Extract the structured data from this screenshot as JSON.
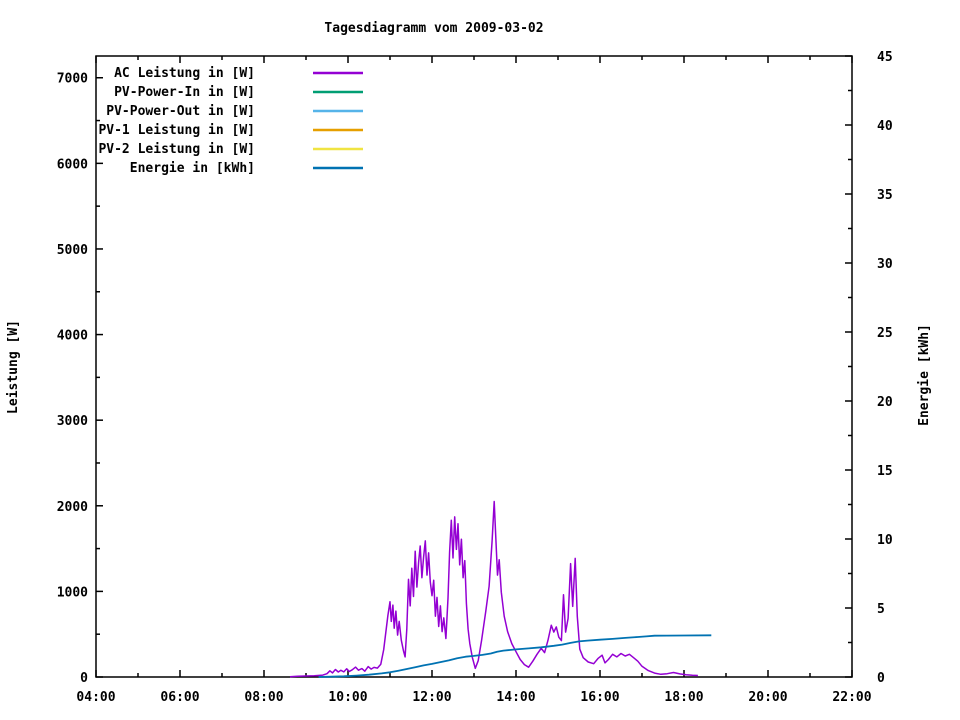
{
  "title": "Tagesdiagramm vom 2009-03-02",
  "chart_data": {
    "type": "line",
    "title": "Tagesdiagramm vom 2009-03-02",
    "grid": false,
    "legend_position": "top-left-inside",
    "x_axis": {
      "unit": "time",
      "range_hours": [
        4,
        22
      ],
      "major_tick_hours": [
        4,
        6,
        8,
        10,
        12,
        14,
        16,
        18,
        20,
        22
      ],
      "minor_tick_step_hours": 1,
      "tick_labels": [
        "04:00",
        "06:00",
        "08:00",
        "10:00",
        "12:00",
        "14:00",
        "16:00",
        "18:00",
        "20:00",
        "22:00"
      ]
    },
    "y_left": {
      "label": "Leistung [W]",
      "ticks": [
        0,
        1000,
        2000,
        3000,
        4000,
        5000,
        6000,
        7000
      ],
      "minor_tick_step": 500,
      "range": [
        0,
        7254
      ]
    },
    "y_right": {
      "label": "Energie [kWh]",
      "ticks": [
        0,
        5,
        10,
        15,
        20,
        25,
        30,
        35,
        40,
        45
      ],
      "minor_tick_step": 2.5,
      "range": [
        0,
        45
      ]
    },
    "series": [
      {
        "name": "AC Leistung in [W]",
        "color": "#9400d3",
        "axis": "left",
        "visible": true,
        "points": [
          [
            8.62,
            4
          ],
          [
            8.8,
            8
          ],
          [
            9.0,
            12
          ],
          [
            9.2,
            14
          ],
          [
            9.4,
            22
          ],
          [
            9.5,
            38
          ],
          [
            9.57,
            72
          ],
          [
            9.63,
            48
          ],
          [
            9.7,
            88
          ],
          [
            9.77,
            58
          ],
          [
            9.83,
            78
          ],
          [
            9.9,
            60
          ],
          [
            9.97,
            96
          ],
          [
            10.03,
            64
          ],
          [
            10.1,
            84
          ],
          [
            10.18,
            116
          ],
          [
            10.25,
            80
          ],
          [
            10.33,
            98
          ],
          [
            10.4,
            68
          ],
          [
            10.48,
            122
          ],
          [
            10.55,
            92
          ],
          [
            10.62,
            112
          ],
          [
            10.7,
            104
          ],
          [
            10.78,
            150
          ],
          [
            10.85,
            320
          ],
          [
            10.9,
            520
          ],
          [
            10.95,
            720
          ],
          [
            11.0,
            880
          ],
          [
            11.03,
            650
          ],
          [
            11.07,
            840
          ],
          [
            11.1,
            570
          ],
          [
            11.14,
            770
          ],
          [
            11.18,
            490
          ],
          [
            11.22,
            650
          ],
          [
            11.27,
            430
          ],
          [
            11.32,
            310
          ],
          [
            11.36,
            235
          ],
          [
            11.4,
            560
          ],
          [
            11.44,
            1140
          ],
          [
            11.48,
            830
          ],
          [
            11.52,
            1270
          ],
          [
            11.56,
            940
          ],
          [
            11.6,
            1470
          ],
          [
            11.64,
            1050
          ],
          [
            11.68,
            1340
          ],
          [
            11.72,
            1530
          ],
          [
            11.76,
            1160
          ],
          [
            11.8,
            1400
          ],
          [
            11.84,
            1590
          ],
          [
            11.88,
            1190
          ],
          [
            11.92,
            1450
          ],
          [
            11.96,
            1110
          ],
          [
            12.0,
            950
          ],
          [
            12.04,
            1130
          ],
          [
            12.08,
            710
          ],
          [
            12.12,
            930
          ],
          [
            12.16,
            590
          ],
          [
            12.2,
            830
          ],
          [
            12.24,
            530
          ],
          [
            12.28,
            690
          ],
          [
            12.33,
            450
          ],
          [
            12.38,
            920
          ],
          [
            12.42,
            1460
          ],
          [
            12.46,
            1830
          ],
          [
            12.5,
            1390
          ],
          [
            12.54,
            1870
          ],
          [
            12.58,
            1490
          ],
          [
            12.62,
            1790
          ],
          [
            12.66,
            1310
          ],
          [
            12.7,
            1610
          ],
          [
            12.74,
            1160
          ],
          [
            12.78,
            1360
          ],
          [
            12.82,
            860
          ],
          [
            12.86,
            560
          ],
          [
            12.9,
            390
          ],
          [
            12.96,
            230
          ],
          [
            13.03,
            100
          ],
          [
            13.1,
            190
          ],
          [
            13.18,
            430
          ],
          [
            13.28,
            770
          ],
          [
            13.36,
            1060
          ],
          [
            13.43,
            1590
          ],
          [
            13.48,
            2050
          ],
          [
            13.52,
            1630
          ],
          [
            13.56,
            1190
          ],
          [
            13.6,
            1370
          ],
          [
            13.65,
            990
          ],
          [
            13.72,
            710
          ],
          [
            13.8,
            530
          ],
          [
            13.9,
            390
          ],
          [
            14.0,
            295
          ],
          [
            14.1,
            205
          ],
          [
            14.2,
            145
          ],
          [
            14.3,
            115
          ],
          [
            14.4,
            185
          ],
          [
            14.5,
            265
          ],
          [
            14.6,
            335
          ],
          [
            14.68,
            285
          ],
          [
            14.76,
            425
          ],
          [
            14.84,
            605
          ],
          [
            14.9,
            525
          ],
          [
            14.96,
            585
          ],
          [
            15.02,
            465
          ],
          [
            15.08,
            425
          ],
          [
            15.13,
            960
          ],
          [
            15.18,
            525
          ],
          [
            15.24,
            685
          ],
          [
            15.3,
            1325
          ],
          [
            15.35,
            825
          ],
          [
            15.41,
            1385
          ],
          [
            15.46,
            705
          ],
          [
            15.52,
            325
          ],
          [
            15.6,
            225
          ],
          [
            15.72,
            175
          ],
          [
            15.85,
            155
          ],
          [
            15.95,
            215
          ],
          [
            16.05,
            255
          ],
          [
            16.12,
            165
          ],
          [
            16.2,
            205
          ],
          [
            16.3,
            265
          ],
          [
            16.4,
            235
          ],
          [
            16.5,
            275
          ],
          [
            16.6,
            245
          ],
          [
            16.7,
            265
          ],
          [
            16.8,
            225
          ],
          [
            16.9,
            185
          ],
          [
            17.0,
            125
          ],
          [
            17.15,
            75
          ],
          [
            17.3,
            45
          ],
          [
            17.45,
            32
          ],
          [
            17.6,
            38
          ],
          [
            17.75,
            52
          ],
          [
            17.9,
            36
          ],
          [
            18.05,
            26
          ],
          [
            18.2,
            20
          ],
          [
            18.33,
            18
          ]
        ]
      },
      {
        "name": "PV-Power-In in [W]",
        "color": "#009e73",
        "axis": "left",
        "visible": false,
        "points": []
      },
      {
        "name": "PV-Power-Out in [W]",
        "color": "#56b4e9",
        "axis": "left",
        "visible": false,
        "points": []
      },
      {
        "name": "PV-1 Leistung in [W]",
        "color": "#e69f00",
        "axis": "left",
        "visible": false,
        "points": []
      },
      {
        "name": "PV-2 Leistung in [W]",
        "color": "#f0e442",
        "axis": "left",
        "visible": false,
        "points": []
      },
      {
        "name": "Energie in [kWh]",
        "color": "#0072b2",
        "axis": "right",
        "visible": true,
        "points": [
          [
            9.3,
            0
          ],
          [
            9.6,
            0.02
          ],
          [
            9.9,
            0.05
          ],
          [
            10.2,
            0.1
          ],
          [
            10.5,
            0.17
          ],
          [
            10.8,
            0.26
          ],
          [
            11.0,
            0.34
          ],
          [
            11.2,
            0.46
          ],
          [
            11.4,
            0.58
          ],
          [
            11.6,
            0.71
          ],
          [
            11.8,
            0.84
          ],
          [
            12.0,
            0.95
          ],
          [
            12.2,
            1.08
          ],
          [
            12.4,
            1.2
          ],
          [
            12.6,
            1.36
          ],
          [
            12.8,
            1.47
          ],
          [
            13.0,
            1.53
          ],
          [
            13.2,
            1.6
          ],
          [
            13.4,
            1.7
          ],
          [
            13.55,
            1.83
          ],
          [
            13.7,
            1.91
          ],
          [
            13.85,
            1.96
          ],
          [
            14.0,
            2.0
          ],
          [
            14.3,
            2.07
          ],
          [
            14.6,
            2.15
          ],
          [
            14.9,
            2.26
          ],
          [
            15.1,
            2.35
          ],
          [
            15.3,
            2.47
          ],
          [
            15.5,
            2.58
          ],
          [
            15.7,
            2.64
          ],
          [
            16.0,
            2.7
          ],
          [
            16.3,
            2.76
          ],
          [
            16.6,
            2.83
          ],
          [
            16.9,
            2.9
          ],
          [
            17.1,
            2.94
          ],
          [
            17.3,
            2.99
          ],
          [
            17.6,
            3.0
          ],
          [
            18.0,
            3.01
          ],
          [
            18.65,
            3.02
          ]
        ]
      }
    ]
  }
}
